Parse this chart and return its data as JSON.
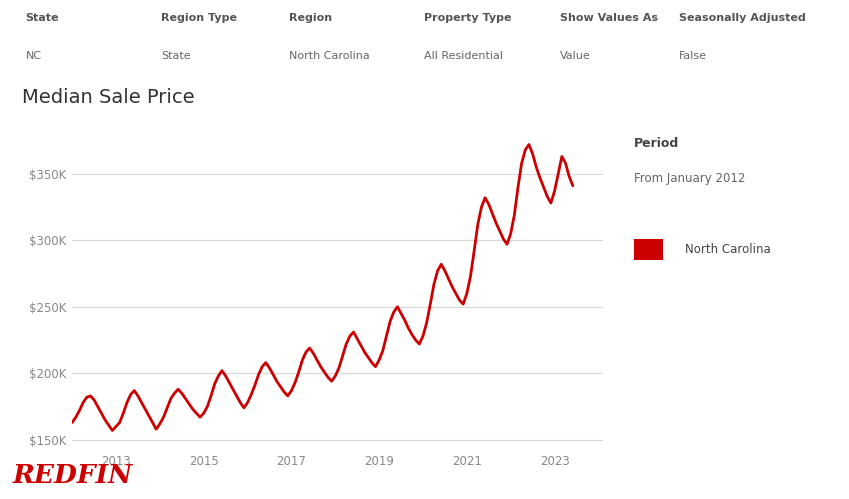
{
  "title": "Median Sale Price",
  "header_items": [
    {
      "label": "State",
      "value": "NC"
    },
    {
      "label": "Region Type",
      "value": "State"
    },
    {
      "label": "Region",
      "value": "North Carolina"
    },
    {
      "label": "Property Type",
      "value": "All Residential"
    },
    {
      "label": "Show Values As",
      "value": "Value"
    },
    {
      "label": "Seasonally Adjusted",
      "value": "False"
    }
  ],
  "period_label": "Period",
  "period_value": "From January 2012",
  "legend_label": "North Carolina",
  "line_color": "#cc0000",
  "background_color": "#ffffff",
  "grid_color": "#d8d8d8",
  "redfin_color": "#cc0000",
  "ylim": [
    143000,
    385000
  ],
  "yticks": [
    150000,
    200000,
    250000,
    300000,
    350000
  ],
  "ytick_labels": [
    "$150K",
    "$200K",
    "$250K",
    "$300K",
    "$350K"
  ],
  "xtick_labels": [
    "2013",
    "2015",
    "2017",
    "2019",
    "2021",
    "2023"
  ],
  "values": [
    163000,
    167000,
    172000,
    178000,
    182000,
    183000,
    180000,
    175000,
    170000,
    165000,
    161000,
    157000,
    160000,
    163000,
    170000,
    178000,
    184000,
    187000,
    183000,
    178000,
    173000,
    168000,
    163000,
    158000,
    162000,
    167000,
    174000,
    181000,
    185000,
    188000,
    185000,
    181000,
    177000,
    173000,
    170000,
    167000,
    170000,
    175000,
    183000,
    192000,
    198000,
    202000,
    198000,
    193000,
    188000,
    183000,
    178000,
    174000,
    178000,
    184000,
    191000,
    199000,
    205000,
    208000,
    204000,
    199000,
    194000,
    190000,
    186000,
    183000,
    187000,
    193000,
    201000,
    210000,
    216000,
    219000,
    215000,
    210000,
    205000,
    201000,
    197000,
    194000,
    198000,
    204000,
    213000,
    222000,
    228000,
    231000,
    226000,
    221000,
    216000,
    212000,
    208000,
    205000,
    210000,
    217000,
    228000,
    239000,
    246000,
    250000,
    245000,
    240000,
    234000,
    229000,
    225000,
    222000,
    228000,
    238000,
    252000,
    267000,
    277000,
    282000,
    277000,
    271000,
    265000,
    260000,
    255000,
    252000,
    260000,
    273000,
    292000,
    312000,
    325000,
    332000,
    327000,
    320000,
    313000,
    307000,
    301000,
    297000,
    305000,
    319000,
    340000,
    358000,
    368000,
    372000,
    365000,
    355000,
    347000,
    340000,
    333000,
    328000,
    337000,
    350000,
    363000,
    358000,
    348000,
    341000
  ]
}
